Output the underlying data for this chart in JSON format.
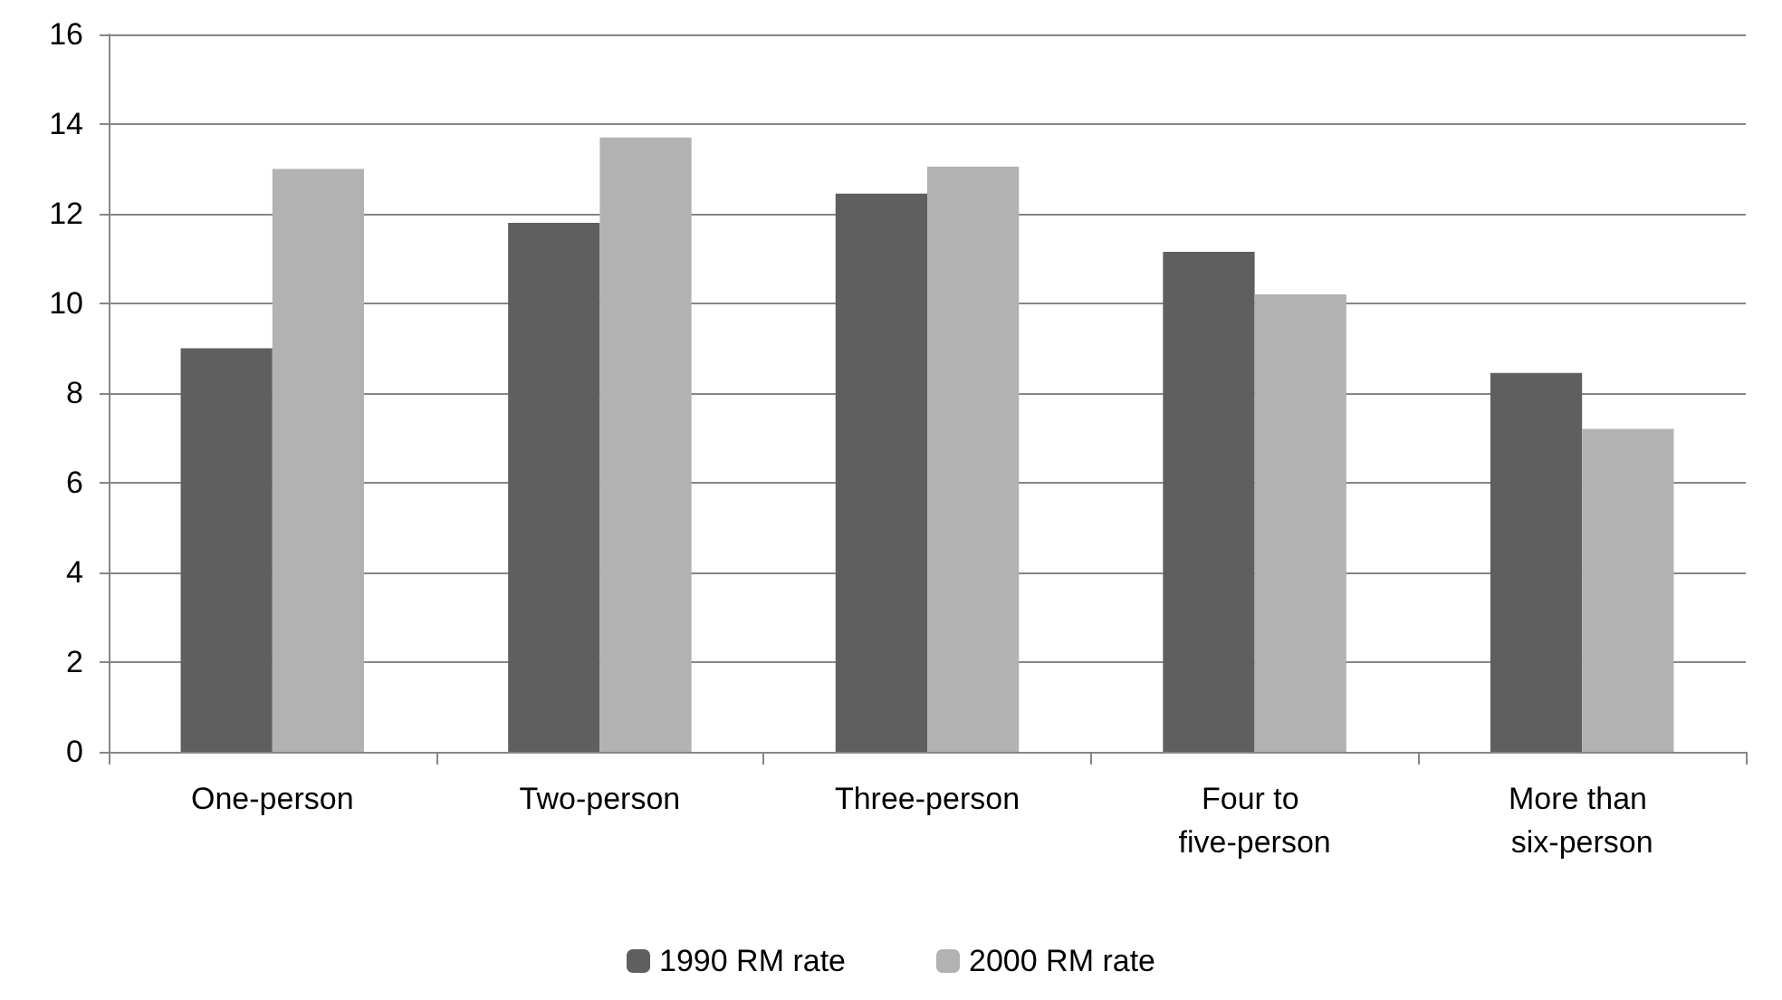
{
  "chart_data": {
    "type": "bar",
    "categories": [
      "One-person",
      "Two-person",
      "Three-person",
      "Four to five-person",
      "More than six-person"
    ],
    "series": [
      {
        "name": "1990 RM rate",
        "color": "#5f5f5f",
        "values": [
          9.0,
          11.8,
          12.45,
          11.15,
          8.45
        ]
      },
      {
        "name": "2000 RM rate",
        "color": "#b2b2b2",
        "values": [
          13.0,
          13.7,
          13.05,
          10.2,
          7.2
        ]
      }
    ],
    "ylim": [
      0,
      16
    ],
    "yticks": [
      0,
      2,
      4,
      6,
      8,
      10,
      12,
      14,
      16
    ],
    "grid": "y",
    "legend": "bottom"
  }
}
